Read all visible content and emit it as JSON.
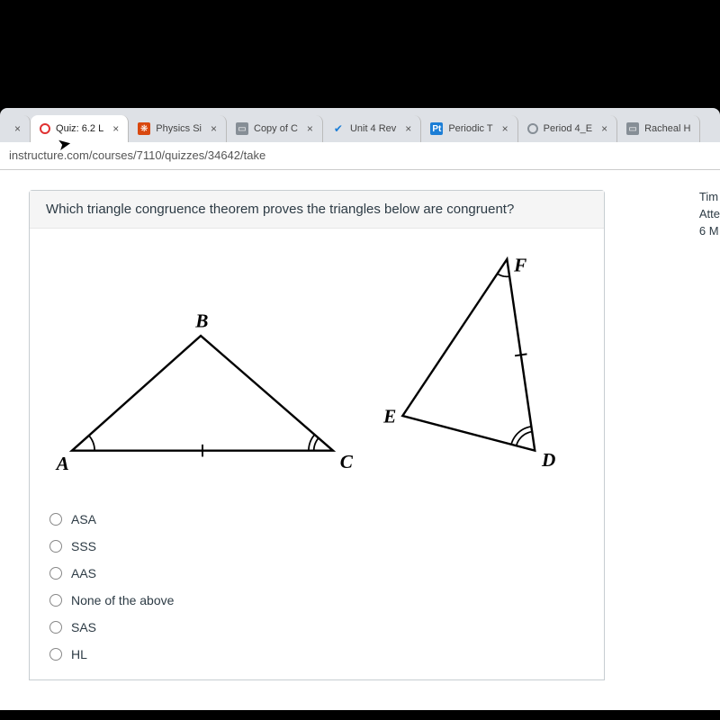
{
  "tabs": [
    {
      "label": "",
      "close": true,
      "icon": "x-only"
    },
    {
      "label": "Quiz: 6.2 L",
      "icon": "red-ring",
      "close": true,
      "active": true
    },
    {
      "label": "Physics Si",
      "icon": "orange",
      "close": true
    },
    {
      "label": "Copy of C",
      "icon": "gray",
      "close": true
    },
    {
      "label": "Unit 4 Rev",
      "icon": "check",
      "close": true
    },
    {
      "label": "Periodic T",
      "icon": "blue",
      "iconText": "Pt",
      "close": true
    },
    {
      "label": "Period 4_E",
      "icon": "circle-empty",
      "close": true
    },
    {
      "label": "Racheal H",
      "icon": "gray",
      "close": false
    }
  ],
  "url": "instructure.com/courses/7110/quizzes/34642/take",
  "question": "Which triangle congruence theorem proves the triangles below are congruent?",
  "labels": {
    "A": "A",
    "B": "B",
    "C": "C",
    "D": "D",
    "E": "E",
    "F": "F"
  },
  "options": [
    "ASA",
    "SSS",
    "AAS",
    "None of the above",
    "SAS",
    "HL"
  ],
  "sidebar": {
    "l1": "Tim",
    "l2": "Atte",
    "l3": "6 M"
  },
  "figure": {
    "stroke": "#000000",
    "strokeWidth": 2.5,
    "fontFamily": "Georgia, serif",
    "fontSize": 22,
    "fontStyle": "italic",
    "fontWeight": "bold",
    "tri1": {
      "A": [
        30,
        240
      ],
      "B": [
        178,
        108
      ],
      "C": [
        330,
        240
      ]
    },
    "tri2": {
      "E": [
        410,
        200
      ],
      "F": [
        530,
        20
      ],
      "D": [
        562,
        240
      ]
    }
  }
}
